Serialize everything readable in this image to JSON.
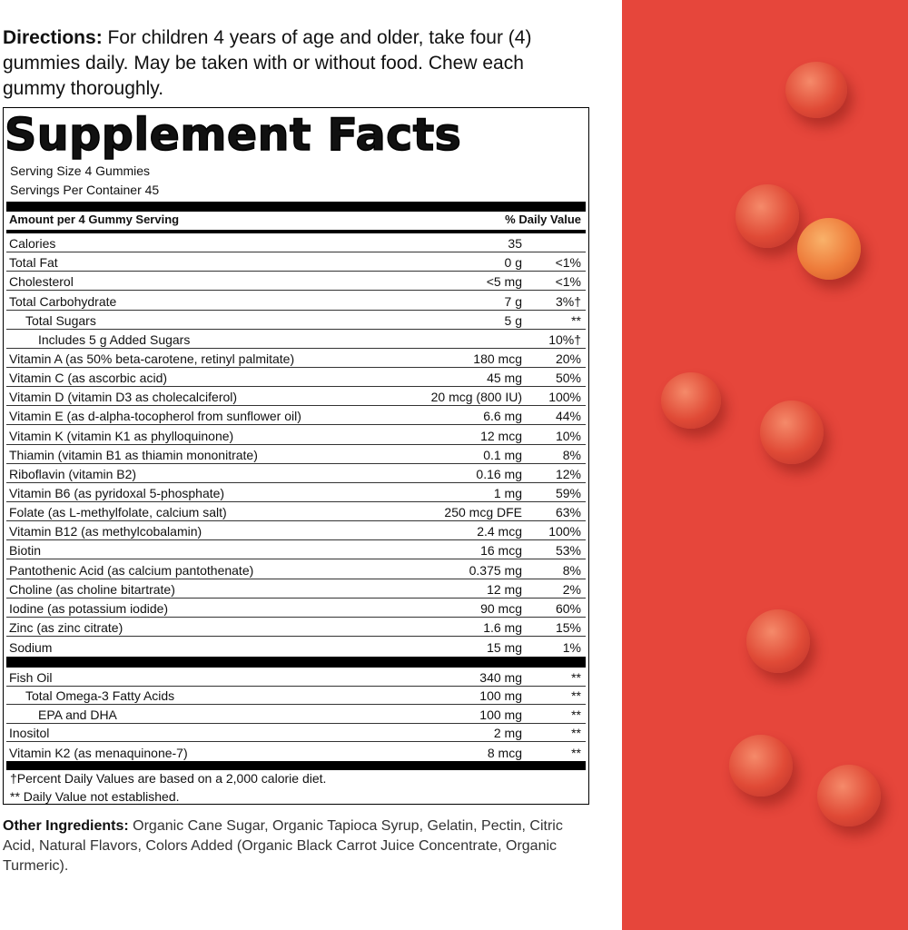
{
  "directions": {
    "label": "Directions:",
    "text": "For children 4 years of age and older, take four (4) gummies daily. May be taken with or without food. Chew each gummy thoroughly."
  },
  "facts": {
    "title": "Supplement Facts",
    "serving_size": "Serving Size 4 Gummies",
    "servings_per_container": "Servings Per Container 45",
    "header": {
      "amount": "Amount per 4 Gummy Serving",
      "dv": "% Daily Value"
    },
    "sections": [
      {
        "rows": [
          {
            "name": "Calories",
            "amount": "35"
          },
          {
            "name": "Total Fat",
            "amount": "0 g",
            "dv": "<1%"
          },
          {
            "name": "Cholesterol",
            "amount": "<5 mg",
            "dv": "<1%"
          },
          {
            "name": "Total Carbohydrate",
            "amount": "7 g",
            "dv": "3%†"
          },
          {
            "name": "Total Sugars",
            "amount": "5 g",
            "dv": "**"
          },
          {
            "name": "Includes 5 g Added Sugars",
            "dv": "10%†"
          },
          {
            "name": "Vitamin A (as 50% beta-carotene, retinyl palmitate)",
            "amount": "180 mcg",
            "dv": "20%"
          },
          {
            "name": "Vitamin C (as ascorbic acid)",
            "amount": "45 mg",
            "dv": "50%"
          },
          {
            "name": "Vitamin D (vitamin D3 as cholecalciferol)",
            "amount": "20 mcg (800 IU)",
            "dv": "100%"
          },
          {
            "name": "Vitamin E (as d-alpha-tocopherol from sunflower oil)",
            "amount": "6.6 mg",
            "dv": "44%"
          },
          {
            "name": "Vitamin K (vitamin K1 as phylloquinone)",
            "amount": "12 mcg",
            "dv": "10%"
          },
          {
            "name": "Thiamin (vitamin B1 as thiamin mononitrate)",
            "amount": "0.1 mg",
            "dv": "8%"
          },
          {
            "name": "Riboflavin (vitamin B2)",
            "amount": "0.16 mg",
            "dv": "12%"
          },
          {
            "name": "Vitamin B6 (as pyridoxal 5-phosphate)",
            "amount": "1 mg",
            "dv": "59%"
          },
          {
            "name": "Folate (as L-methylfolate, calcium salt)",
            "amount": "250 mcg DFE",
            "dv": "63%"
          },
          {
            "name": "Vitamin B12 (as methylcobalamin)",
            "amount": "2.4 mcg",
            "dv": "100%"
          },
          {
            "name": "Biotin",
            "amount": "16 mcg",
            "dv": "53%"
          },
          {
            "name": "Pantothenic Acid (as calcium pantothenate)",
            "amount": "0.375 mg",
            "dv": "8%"
          },
          {
            "name": "Choline (as choline bitartrate)",
            "amount": "12 mg",
            "dv": "2%"
          },
          {
            "name": "Iodine (as potassium iodide)",
            "amount": "90 mcg",
            "dv": "60%"
          },
          {
            "name": "Zinc (as zinc citrate)",
            "amount": "1.6 mg",
            "dv": "15%"
          },
          {
            "name": "Sodium",
            "amount": "15 mg",
            "dv": "1%"
          }
        ]
      },
      {
        "rows": [
          {
            "name": "Fish Oil",
            "amount": "340 mg",
            "dv": "**"
          },
          {
            "name": "Total Omega-3 Fatty Acids",
            "amount": "100 mg",
            "dv": "**"
          },
          {
            "name": "EPA and DHA",
            "amount": "100 mg",
            "dv": "**"
          },
          {
            "name": "Inositol",
            "amount": "2 mg",
            "dv": "**"
          },
          {
            "name": "Vitamin K2 (as menaquinone-7)",
            "amount": "8 mcg",
            "dv": "**"
          }
        ]
      }
    ],
    "footnotes": [
      "†Percent Daily Values are based on a 2,000 calorie diet.",
      "** Daily Value not established."
    ]
  },
  "other_ingredients": {
    "label": "Other Ingredients:",
    "text": "Organic Cane Sugar, Organic Tapioca Syrup, Gelatin, Pectin, Citric Acid, Natural Flavors, Colors Added (Organic Black Carrot Juice Concentrate, Organic Turmeric)."
  }
}
